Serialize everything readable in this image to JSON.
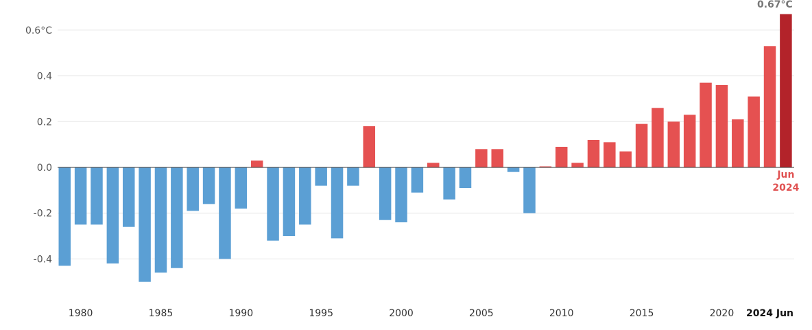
{
  "chart_data": {
    "type": "bar",
    "categories": [
      "1979",
      "1980",
      "1981",
      "1982",
      "1983",
      "1984",
      "1985",
      "1986",
      "1987",
      "1988",
      "1989",
      "1990",
      "1991",
      "1992",
      "1993",
      "1994",
      "1995",
      "1996",
      "1997",
      "1998",
      "1999",
      "2000",
      "2001",
      "2002",
      "2003",
      "2004",
      "2005",
      "2006",
      "2007",
      "2008",
      "2009",
      "2010",
      "2011",
      "2012",
      "2013",
      "2014",
      "2015",
      "2016",
      "2017",
      "2018",
      "2019",
      "2020",
      "2021",
      "2022",
      "2023",
      "2024 Jun"
    ],
    "values": [
      -0.43,
      -0.25,
      -0.25,
      -0.42,
      -0.26,
      -0.5,
      -0.46,
      -0.44,
      -0.19,
      -0.16,
      -0.4,
      -0.18,
      0.03,
      -0.32,
      -0.3,
      -0.25,
      -0.08,
      -0.31,
      -0.08,
      0.18,
      -0.23,
      -0.24,
      -0.11,
      0.02,
      -0.14,
      -0.09,
      0.08,
      0.08,
      -0.02,
      -0.2,
      0.0,
      0.09,
      0.02,
      0.12,
      0.11,
      0.07,
      0.19,
      0.26,
      0.2,
      0.23,
      0.37,
      0.36,
      0.21,
      0.31,
      0.53,
      0.67
    ],
    "ylim": [
      -0.57,
      0.67
    ],
    "yticks": [
      {
        "value": 0.6,
        "label": "0.6°C"
      },
      {
        "value": 0.4,
        "label": "0.4"
      },
      {
        "value": 0.2,
        "label": "0.2"
      },
      {
        "value": 0.0,
        "label": "0.0"
      },
      {
        "value": -0.2,
        "label": "-0.2"
      },
      {
        "value": -0.4,
        "label": "-0.4"
      }
    ],
    "xticks": [
      {
        "index": 1,
        "label": "1980"
      },
      {
        "index": 6,
        "label": "1985"
      },
      {
        "index": 11,
        "label": "1990"
      },
      {
        "index": 16,
        "label": "1995"
      },
      {
        "index": 21,
        "label": "2000"
      },
      {
        "index": 26,
        "label": "2005"
      },
      {
        "index": 31,
        "label": "2010"
      },
      {
        "index": 36,
        "label": "2015"
      },
      {
        "index": 41,
        "label": "2020"
      },
      {
        "index": 45,
        "label": "2024 Jun",
        "strong": true
      }
    ],
    "colors": {
      "negative": "#5b9fd4",
      "positive": "#e55151",
      "highlight": "#b3232a",
      "gridline": "#e6e6e6",
      "baseline": "#333333"
    },
    "grid": true,
    "callout": {
      "value_label": "0.67°C",
      "label_line1": "Jun",
      "label_line2": "2024"
    }
  }
}
